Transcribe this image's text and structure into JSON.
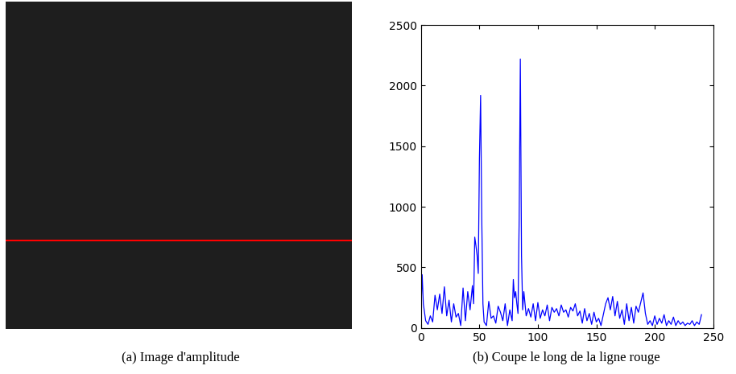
{
  "chart_data": [
    {
      "type": "image",
      "caption": "(a) Image d'amplitude",
      "color": "#ff0000"
    },
    {
      "type": "line",
      "caption": "(b) Coupe le long de la ligne rouge",
      "color": "#0000ff",
      "x": [
        0,
        1,
        2,
        4,
        6,
        8,
        10,
        12,
        14,
        16,
        18,
        20,
        22,
        24,
        26,
        28,
        30,
        32,
        34,
        36,
        38,
        40,
        42,
        44,
        45,
        46,
        47,
        48,
        49,
        50,
        51,
        52,
        53,
        54,
        56,
        58,
        60,
        62,
        64,
        66,
        68,
        70,
        72,
        74,
        76,
        78,
        79,
        80,
        81,
        82,
        83,
        84,
        85,
        86,
        87,
        88,
        90,
        92,
        94,
        96,
        98,
        100,
        102,
        104,
        106,
        108,
        110,
        112,
        114,
        116,
        118,
        120,
        122,
        124,
        126,
        128,
        130,
        132,
        134,
        136,
        138,
        140,
        142,
        144,
        146,
        148,
        150,
        152,
        154,
        156,
        158,
        160,
        162,
        164,
        166,
        168,
        170,
        172,
        174,
        176,
        178,
        180,
        182,
        184,
        186,
        188,
        190,
        192,
        194,
        196,
        198,
        200,
        202,
        204,
        206,
        208,
        210,
        212,
        214,
        216,
        218,
        220,
        222,
        224,
        226,
        228,
        230,
        232,
        234,
        236,
        238,
        240
      ],
      "values": [
        150,
        440,
        200,
        60,
        30,
        100,
        50,
        270,
        150,
        280,
        120,
        340,
        100,
        230,
        50,
        200,
        90,
        120,
        20,
        330,
        60,
        300,
        150,
        350,
        200,
        750,
        680,
        600,
        450,
        1400,
        1920,
        900,
        200,
        50,
        20,
        220,
        80,
        100,
        40,
        180,
        130,
        60,
        200,
        20,
        150,
        60,
        400,
        250,
        300,
        200,
        120,
        900,
        2220,
        600,
        150,
        300,
        100,
        160,
        90,
        200,
        60,
        210,
        80,
        150,
        100,
        190,
        60,
        170,
        130,
        160,
        100,
        190,
        130,
        150,
        90,
        170,
        140,
        200,
        100,
        140,
        40,
        160,
        60,
        120,
        30,
        130,
        50,
        80,
        20,
        110,
        200,
        250,
        150,
        260,
        100,
        220,
        80,
        150,
        30,
        200,
        60,
        170,
        40,
        180,
        130,
        210,
        290,
        120,
        30,
        60,
        20,
        100,
        30,
        80,
        40,
        110,
        20,
        60,
        30,
        90,
        20,
        60,
        30,
        50,
        20,
        40,
        30,
        60,
        20,
        50,
        30,
        110
      ],
      "xlim": [
        0,
        250
      ],
      "ylim": [
        0,
        2500
      ],
      "xticks": [
        0,
        50,
        100,
        150,
        200,
        250
      ],
      "yticks": [
        0,
        500,
        1000,
        1500,
        2000,
        2500
      ]
    }
  ]
}
